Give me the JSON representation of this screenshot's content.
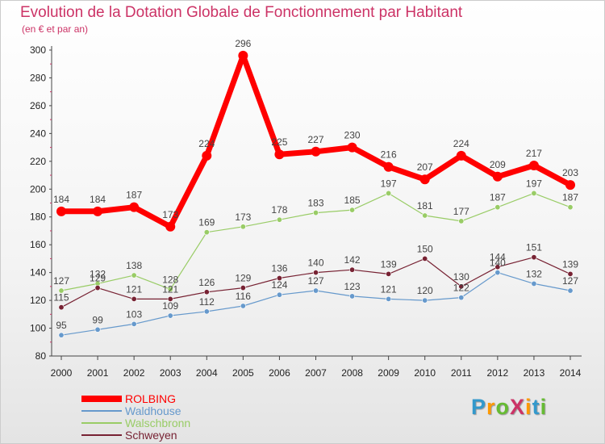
{
  "title": "Evolution de la Dotation Globale de Fonctionnement par Habitant",
  "subtitle": "(en € et par an)",
  "chart_data": {
    "type": "line",
    "x": [
      "2000",
      "2001",
      "2002",
      "2003",
      "2004",
      "2005",
      "2006",
      "2007",
      "2008",
      "2009",
      "2010",
      "2011",
      "2012",
      "2013",
      "2014"
    ],
    "ylim": [
      80,
      300
    ],
    "yticks": [
      80,
      100,
      120,
      140,
      160,
      180,
      200,
      220,
      240,
      260,
      280,
      300
    ],
    "grid": false,
    "legend": "bottom-left",
    "series": [
      {
        "name": "ROLBING",
        "color": "#ff0000",
        "values": [
          184,
          184,
          187,
          173,
          224,
          296,
          225,
          227,
          230,
          216,
          207,
          224,
          209,
          217,
          203
        ]
      },
      {
        "name": "Waldhouse",
        "color": "#6699cc",
        "values": [
          95,
          99,
          103,
          109,
          112,
          116,
          124,
          127,
          123,
          121,
          120,
          122,
          140,
          132,
          127
        ]
      },
      {
        "name": "Walschbronn",
        "color": "#99cc66",
        "values": [
          127,
          132,
          138,
          128,
          169,
          173,
          178,
          183,
          185,
          197,
          181,
          177,
          187,
          197,
          187
        ]
      },
      {
        "name": "Schweyen",
        "color": "#772233",
        "values": [
          115,
          129,
          121,
          121,
          126,
          129,
          136,
          140,
          142,
          139,
          150,
          130,
          144,
          151,
          139
        ]
      }
    ]
  },
  "logo": {
    "text": "ProXiti",
    "colors": [
      "#3399cc",
      "#ff9900",
      "#66bb33",
      "#cc3366",
      "#ff9900",
      "#3399cc",
      "#66bb33"
    ]
  }
}
